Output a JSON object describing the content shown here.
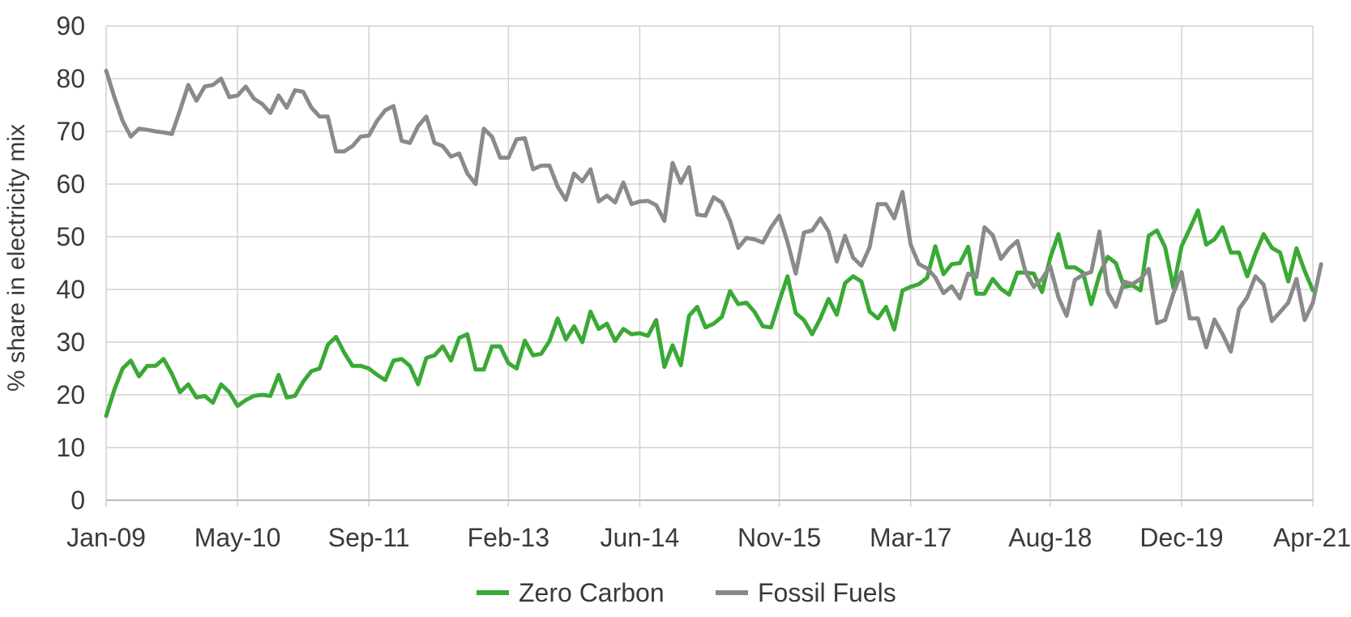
{
  "chart_data": {
    "type": "line",
    "title": "",
    "ylabel": "% share in electricity mix",
    "xlabel": "",
    "ylim": [
      0,
      90
    ],
    "y_ticks": [
      "0",
      "10",
      "20",
      "30",
      "40",
      "50",
      "60",
      "70",
      "80",
      "90"
    ],
    "x_ticks": [
      {
        "label": "Jan-09",
        "date": "2009-01"
      },
      {
        "label": "May-10",
        "date": "2010-05"
      },
      {
        "label": "Sep-11",
        "date": "2011-09"
      },
      {
        "label": "Feb-13",
        "date": "2013-02"
      },
      {
        "label": "Jun-14",
        "date": "2014-06"
      },
      {
        "label": "Nov-15",
        "date": "2015-11"
      },
      {
        "label": "Mar-17",
        "date": "2017-03"
      },
      {
        "label": "Aug-18",
        "date": "2018-08"
      },
      {
        "label": "Dec-19",
        "date": "2019-12"
      },
      {
        "label": "Apr-21",
        "date": "2021-04"
      }
    ],
    "x_start": "2009-01",
    "grid": true,
    "legend_position": "bottom",
    "series": [
      {
        "name": "Zero Carbon",
        "color": "#3aa935",
        "values": [
          16,
          21,
          25,
          26.5,
          23.5,
          25.5,
          25.5,
          26.8,
          24,
          20.5,
          22,
          19.5,
          19.8,
          18.5,
          22,
          20.5,
          17.9,
          19,
          19.8,
          20,
          19.8,
          23.8,
          19.5,
          19.8,
          22.5,
          24.5,
          25,
          29.5,
          31,
          28,
          25.5,
          25.5,
          25,
          23.8,
          22.8,
          26.5,
          26.8,
          25.5,
          22,
          27,
          27.5,
          29.2,
          26.5,
          30.8,
          31.5,
          24.8,
          24.8,
          29.2,
          29.2,
          26,
          25,
          30.3,
          27.5,
          27.8,
          30.2,
          34.5,
          30.5,
          33,
          30,
          35.8,
          32.5,
          33.5,
          30.2,
          32.5,
          31.5,
          31.7,
          31.2,
          34.2,
          25.3,
          29.4,
          25.6,
          35,
          36.7,
          32.8,
          33.5,
          34.8,
          39.7,
          37.2,
          37.5,
          35.7,
          33,
          32.8,
          37.8,
          42.5,
          35.5,
          34.2,
          31.5,
          34.5,
          38.2,
          35.2,
          41.2,
          42.5,
          41.5,
          35.8,
          34.5,
          36.7,
          32.4,
          39.8,
          40.5,
          41,
          42.2,
          48.2,
          42.9,
          44.8,
          45,
          48.1,
          39.2,
          39.2,
          42,
          40.1,
          39,
          43.2,
          43.2,
          43,
          39.5,
          46,
          50.5,
          44.2,
          44.2,
          43.2,
          37.2,
          42.8,
          46.2,
          45,
          40.5,
          40.8,
          39.8,
          50.2,
          51.2,
          48,
          40.3,
          48.2,
          51.5,
          55,
          48.5,
          49.5,
          51.8,
          47,
          47,
          42.5,
          46.8,
          50.5,
          47.9,
          47,
          41.5,
          47.8,
          43.5,
          39.8
        ]
      },
      {
        "name": "Fossil Fuels",
        "color": "#8a8a8a",
        "values": [
          81.5,
          76.5,
          72,
          69,
          70.5,
          70.3,
          70,
          69.8,
          69.5,
          74,
          78.8,
          75.8,
          78.5,
          78.8,
          80,
          76.5,
          76.8,
          78.5,
          76.2,
          75.2,
          73.5,
          76.8,
          74.5,
          77.8,
          77.5,
          74.5,
          72.8,
          72.8,
          66.2,
          66.2,
          67.2,
          69,
          69.2,
          72,
          74,
          74.8,
          68.2,
          67.8,
          71,
          72.8,
          67.8,
          67.2,
          65.2,
          65.8,
          62,
          60,
          70.5,
          69,
          65,
          65,
          68.5,
          68.7,
          62.8,
          63.5,
          63.5,
          59.5,
          57,
          62,
          60.5,
          62.8,
          56.7,
          57.8,
          56.5,
          60.3,
          56.2,
          56.7,
          56.8,
          56,
          53,
          64,
          60.2,
          63.2,
          54.2,
          54,
          57.5,
          56.5,
          53,
          47.9,
          49.8,
          49.5,
          48.9,
          51.8,
          54,
          49,
          43,
          50.8,
          51.2,
          53.5,
          51,
          45.3,
          50.2,
          46,
          44.5,
          48,
          56.2,
          56.2,
          53.5,
          58.5,
          48.5,
          44.8,
          44,
          42.3,
          39.3,
          40.6,
          38.3,
          43,
          42.3,
          51.8,
          50.3,
          45.8,
          47.8,
          49.2,
          43.3,
          40.5,
          42,
          44.4,
          38.5,
          35,
          41.8,
          42.8,
          43.3,
          51,
          39.5,
          36.7,
          41.5,
          41,
          42,
          43.9,
          33.6,
          34.2,
          39.2,
          43.3,
          34.5,
          34.5,
          29,
          34.3,
          31.5,
          28.2,
          36.3,
          38.5,
          42.5,
          40.9,
          34,
          35.7,
          37.5,
          42,
          34.2,
          37.5,
          44.8
        ]
      }
    ]
  }
}
